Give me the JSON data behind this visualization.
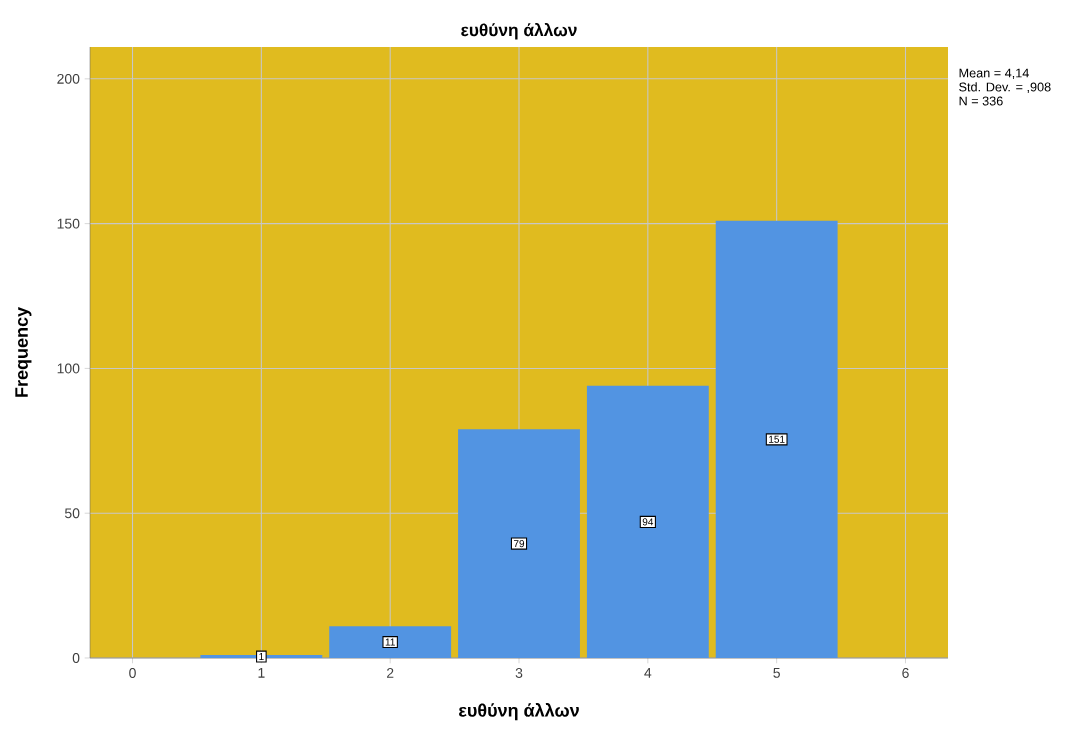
{
  "chart_data": {
    "type": "bar",
    "title": "ευθύνη άλλων",
    "xlabel": "ευθύνη άλλων",
    "ylabel": "Frequency",
    "x": [
      1,
      2,
      3,
      4,
      5
    ],
    "values": [
      1,
      11,
      79,
      94,
      151
    ],
    "color": "#5294e2",
    "data_labels": true,
    "xlim": [
      -0.33,
      6.33
    ],
    "xticks": [
      0,
      1,
      2,
      3,
      4,
      5,
      6
    ],
    "ylim": [
      0,
      211
    ],
    "yticks": [
      0,
      50,
      100,
      150,
      200
    ],
    "grid": true,
    "annotations": [
      "Mean = 4,14",
      "Std. Dev. = ,908",
      "N = 336"
    ]
  }
}
